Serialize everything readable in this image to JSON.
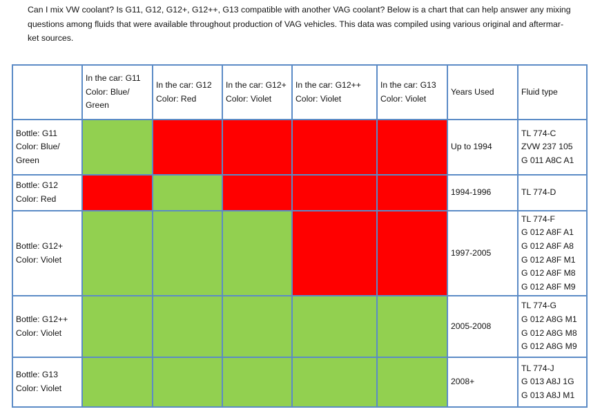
{
  "intro": {
    "line1": "Can I mix VW coolant?  Is G11, G12, G12+, G12++, G13 compatible with another VAG coolant?  Below is a chart that can help answer any mixing",
    "line2": "questions among fluids that were available throughout production of VAG vehicles. This data was compiled using various original and aftermar-",
    "line3": "ket sources."
  },
  "header": {
    "g11": [
      "In the car: G11",
      "Color: Blue/",
      "Green"
    ],
    "g12": [
      "In the car: G12",
      "Color: Red"
    ],
    "g12plus": [
      "In the car: G12+",
      "Color: Violet"
    ],
    "g12plusplus": [
      "In the car: G12++",
      "Color: Violet"
    ],
    "g13": [
      "In the car: G13",
      "Color: Violet"
    ],
    "years": "Years Used",
    "fluid": "Fluid type"
  },
  "rows": [
    {
      "bottle": [
        "Bottle: G11",
        "Color: Blue/",
        "Green"
      ],
      "cells": [
        "green",
        "red",
        "red",
        "red",
        "red"
      ],
      "years": "Up to 1994",
      "fluid": [
        "TL 774-C",
        "ZVW 237 105",
        "G 011 A8C A1"
      ]
    },
    {
      "bottle": [
        "Bottle: G12",
        "Color: Red"
      ],
      "cells": [
        "red",
        "green",
        "red",
        "red",
        "red"
      ],
      "years": "1994-1996",
      "fluid": [
        "TL 774-D"
      ]
    },
    {
      "bottle": [
        "Bottle: G12+",
        "Color: Violet"
      ],
      "cells": [
        "green",
        "green",
        "green",
        "red",
        "red"
      ],
      "years": "1997-2005",
      "fluid": [
        "TL 774-F",
        "G 012 A8F A1",
        "G 012 A8F A8",
        "G 012 A8F M1",
        "G 012 A8F M8",
        "G 012 A8F M9"
      ]
    },
    {
      "bottle": [
        "Bottle: G12++",
        "Color: Violet"
      ],
      "cells": [
        "green",
        "green",
        "green",
        "green",
        "green"
      ],
      "years": "2005-2008",
      "fluid": [
        "TL 774-G",
        "G 012 A8G M1",
        "G 012 A8G M8",
        "G 012 A8G M9"
      ]
    },
    {
      "bottle": [
        "Bottle: G13",
        "Color: Violet"
      ],
      "cells": [
        "green",
        "green",
        "green",
        "green",
        "green"
      ],
      "years": "2008+",
      "fluid": [
        "TL 774-J",
        "G 013 A8J 1G",
        "G 013 A8J M1"
      ]
    }
  ],
  "colors": {
    "compatible": "#92d050",
    "incompatible": "#ff0000",
    "border": "#5b8bc6"
  }
}
